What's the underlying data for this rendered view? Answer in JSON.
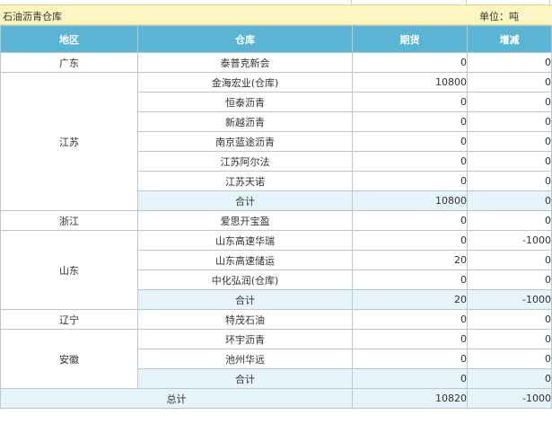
{
  "header": {
    "title": "石油沥青仓库",
    "unit": "单位：吨"
  },
  "columns": [
    "地区",
    "仓库",
    "期货",
    "增减"
  ],
  "groups": [
    {
      "region": "广东",
      "rows": [
        {
          "warehouse": "泰普克新会",
          "futures": "0",
          "change": "0"
        }
      ]
    },
    {
      "region": "江苏",
      "rows": [
        {
          "warehouse": "金海宏业(仓库)",
          "futures": "10800",
          "change": "0"
        },
        {
          "warehouse": "恒泰沥青",
          "futures": "0",
          "change": "0"
        },
        {
          "warehouse": "新越沥青",
          "futures": "0",
          "change": "0"
        },
        {
          "warehouse": "南京蓝途沥青",
          "futures": "0",
          "change": "0"
        },
        {
          "warehouse": "江苏阿尔法",
          "futures": "0",
          "change": "0"
        },
        {
          "warehouse": "江苏天诺",
          "futures": "0",
          "change": "0"
        }
      ],
      "subtotal": {
        "label": "合计",
        "futures": "10800",
        "change": "0"
      }
    },
    {
      "region": "浙江",
      "rows": [
        {
          "warehouse": "爱思开宝盈",
          "futures": "0",
          "change": "0"
        }
      ]
    },
    {
      "region": "山东",
      "rows": [
        {
          "warehouse": "山东高速华瑞",
          "futures": "0",
          "change": "-1000"
        },
        {
          "warehouse": "山东高速储运",
          "futures": "20",
          "change": "0"
        },
        {
          "warehouse": "中化弘润(仓库)",
          "futures": "0",
          "change": "0"
        }
      ],
      "subtotal": {
        "label": "合计",
        "futures": "20",
        "change": "-1000"
      }
    },
    {
      "region": "辽宁",
      "rows": [
        {
          "warehouse": "特茂石油",
          "futures": "0",
          "change": "0"
        }
      ]
    },
    {
      "region": "安徽",
      "rows": [
        {
          "warehouse": "环宇沥青",
          "futures": "0",
          "change": "0"
        },
        {
          "warehouse": "池州华远",
          "futures": "0",
          "change": "0"
        }
      ],
      "subtotal": {
        "label": "合计",
        "futures": "0",
        "change": "0"
      }
    }
  ],
  "grand_total": {
    "label": "总计",
    "futures": "10820",
    "change": "-1000"
  }
}
